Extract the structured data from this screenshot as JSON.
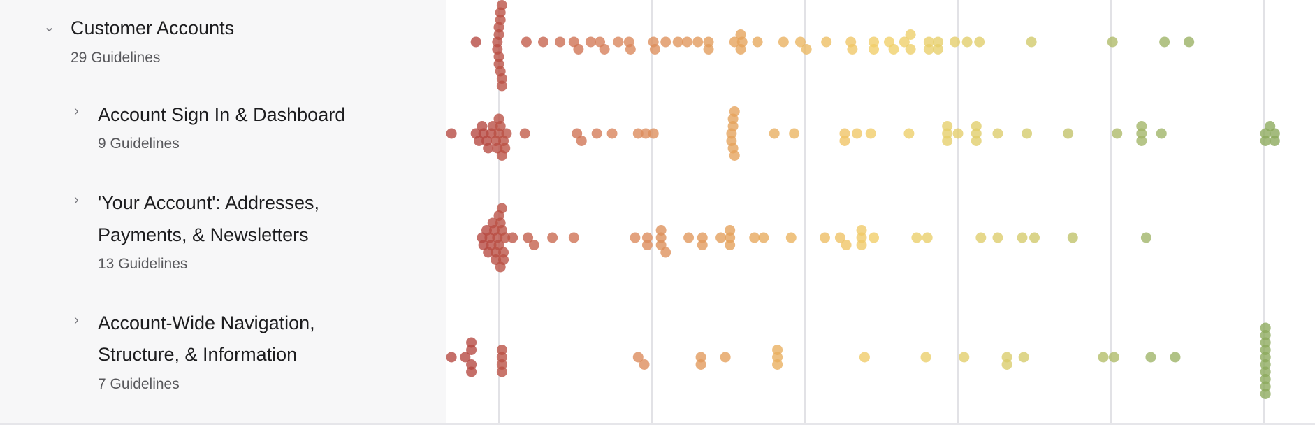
{
  "groups": [
    {
      "title": "Customer Accounts",
      "count": "29 Guidelines",
      "expanded": true,
      "level": 0
    },
    {
      "title": "Account Sign In & Dashboard",
      "count": "9 Guidelines",
      "expanded": false,
      "level": 1
    },
    {
      "title": "'Your Account': Addresses, Payments, & Newsletters",
      "title_line1": "'Your Account': Addresses,",
      "title_line2": "Payments, & Newsletters",
      "count": "13 Guidelines",
      "expanded": false,
      "level": 1
    },
    {
      "title": "Account-Wide Navigation, Structure, & Information",
      "title_line1": "Account-Wide Navigation,",
      "title_line2": "Structure, & Information",
      "count": "7 Guidelines",
      "expanded": false,
      "level": 1
    }
  ],
  "chart_data": {
    "type": "scatter",
    "subtype": "beeswarm",
    "grid": "vertical gridlines, unlabeled",
    "xlim": [
      -0.45,
      5.35
    ],
    "gridlines": [
      0,
      1,
      2,
      3,
      4,
      5
    ],
    "color_scale": [
      "#b5473f",
      "#d9835a",
      "#e6a55a",
      "#f2cf68",
      "#d9cc6a",
      "#9fb466",
      "#8aa85a"
    ],
    "series": [
      {
        "row": 0,
        "values": [
          -0.15,
          -0.01,
          0,
          0,
          0.01,
          0.01,
          0.02,
          0,
          -0.01,
          0.02,
          0.01,
          0,
          0.02,
          0.18,
          0.29,
          0.4,
          0.49,
          0.52,
          0.6,
          0.66,
          0.69,
          0.78,
          0.85,
          0.86,
          1.01,
          1.02,
          1.09,
          1.17,
          1.23,
          1.3,
          1.37,
          1.37,
          1.54,
          1.58,
          1.59,
          1.58,
          1.69,
          1.86,
          1.97,
          2.01,
          2.14,
          2.3,
          2.31,
          2.45,
          2.45,
          2.55,
          2.58,
          2.65,
          2.69,
          2.69,
          2.81,
          2.81,
          2.87,
          2.87,
          2.98,
          3.06,
          3.14,
          3.48,
          4.01,
          4.35,
          4.51
        ]
      },
      {
        "row": 1,
        "values": [
          -0.31,
          -0.15,
          -0.13,
          -0.11,
          -0.1,
          -0.08,
          -0.07,
          -0.05,
          -0.04,
          -0.02,
          -0.01,
          0,
          0,
          0.01,
          0.02,
          0.03,
          0.04,
          0.05,
          0.17,
          0.51,
          0.54,
          0.64,
          0.74,
          0.91,
          0.96,
          1.01,
          1.52,
          1.52,
          1.53,
          1.53,
          1.53,
          1.54,
          1.54,
          1.8,
          1.93,
          2.26,
          2.26,
          2.34,
          2.43,
          2.68,
          2.93,
          2.93,
          2.93,
          3.0,
          3.12,
          3.12,
          3.12,
          3.26,
          3.45,
          3.72,
          4.04,
          4.2,
          4.2,
          4.2,
          4.33,
          5.01,
          5.01,
          5.04,
          5.07,
          5.07
        ]
      },
      {
        "row": 2,
        "values": [
          -0.11,
          -0.1,
          -0.08,
          -0.07,
          -0.06,
          -0.05,
          -0.04,
          -0.03,
          -0.02,
          -0.02,
          -0.01,
          0,
          0,
          0.01,
          0.01,
          0.02,
          0.02,
          0.03,
          0.03,
          0.04,
          0.09,
          0.19,
          0.23,
          0.35,
          0.49,
          0.89,
          0.97,
          0.97,
          1.06,
          1.06,
          1.06,
          1.09,
          1.24,
          1.33,
          1.33,
          1.45,
          1.51,
          1.51,
          1.51,
          1.67,
          1.73,
          1.91,
          2.13,
          2.23,
          2.27,
          2.37,
          2.37,
          2.37,
          2.45,
          2.73,
          2.8,
          3.15,
          3.26,
          3.42,
          3.5,
          3.75,
          4.23
        ]
      },
      {
        "row": 3,
        "values": [
          -0.31,
          -0.22,
          -0.18,
          -0.18,
          -0.18,
          -0.18,
          0.02,
          0.02,
          0.02,
          0.02,
          0.91,
          0.95,
          1.32,
          1.32,
          1.48,
          1.82,
          1.82,
          1.82,
          2.39,
          2.79,
          3.04,
          3.32,
          3.32,
          3.43,
          3.95,
          4.02,
          4.26,
          4.42,
          5.01,
          5.01,
          5.01,
          5.01,
          5.01,
          5.01,
          5.01,
          5.01,
          5.01,
          5.01
        ]
      }
    ]
  }
}
